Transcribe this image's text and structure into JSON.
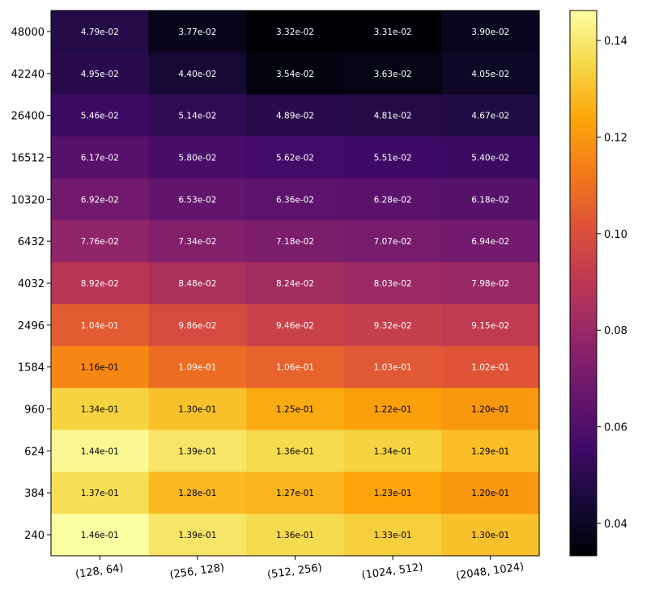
{
  "chart_data": {
    "type": "heatmap",
    "title": "",
    "xlabel": "",
    "ylabel": "",
    "colormap": "inferno",
    "x_categories": [
      "(128, 64)",
      "(256, 128)",
      "(512, 256)",
      "(1024, 512)",
      "(2048, 1024)"
    ],
    "y_categories": [
      "48000",
      "42240",
      "26400",
      "16512",
      "10320",
      "6432",
      "4032",
      "2496",
      "1584",
      "960",
      "624",
      "384",
      "240"
    ],
    "values": [
      [
        0.0479,
        0.0377,
        0.0332,
        0.0331,
        0.039
      ],
      [
        0.0495,
        0.044,
        0.0354,
        0.0363,
        0.0405
      ],
      [
        0.0546,
        0.0514,
        0.0489,
        0.0481,
        0.0467
      ],
      [
        0.0617,
        0.058,
        0.0562,
        0.0551,
        0.054
      ],
      [
        0.0692,
        0.0653,
        0.0636,
        0.0628,
        0.0618
      ],
      [
        0.0776,
        0.0734,
        0.0718,
        0.0707,
        0.0694
      ],
      [
        0.0892,
        0.0848,
        0.0824,
        0.0803,
        0.0798
      ],
      [
        0.104,
        0.0986,
        0.0946,
        0.0932,
        0.0915
      ],
      [
        0.116,
        0.109,
        0.106,
        0.103,
        0.102
      ],
      [
        0.134,
        0.13,
        0.125,
        0.122,
        0.12
      ],
      [
        0.144,
        0.139,
        0.136,
        0.134,
        0.129
      ],
      [
        0.137,
        0.128,
        0.127,
        0.123,
        0.12
      ],
      [
        0.146,
        0.139,
        0.136,
        0.133,
        0.13
      ]
    ],
    "cell_labels": [
      [
        "4.79e-02",
        "3.77e-02",
        "3.32e-02",
        "3.31e-02",
        "3.90e-02"
      ],
      [
        "4.95e-02",
        "4.40e-02",
        "3.54e-02",
        "3.63e-02",
        "4.05e-02"
      ],
      [
        "5.46e-02",
        "5.14e-02",
        "4.89e-02",
        "4.81e-02",
        "4.67e-02"
      ],
      [
        "6.17e-02",
        "5.80e-02",
        "5.62e-02",
        "5.51e-02",
        "5.40e-02"
      ],
      [
        "6.92e-02",
        "6.53e-02",
        "6.36e-02",
        "6.28e-02",
        "6.18e-02"
      ],
      [
        "7.76e-02",
        "7.34e-02",
        "7.18e-02",
        "7.07e-02",
        "6.94e-02"
      ],
      [
        "8.92e-02",
        "8.48e-02",
        "8.24e-02",
        "8.03e-02",
        "7.98e-02"
      ],
      [
        "1.04e-01",
        "9.86e-02",
        "9.46e-02",
        "9.32e-02",
        "9.15e-02"
      ],
      [
        "1.16e-01",
        "1.09e-01",
        "1.06e-01",
        "1.03e-01",
        "1.02e-01"
      ],
      [
        "1.34e-01",
        "1.30e-01",
        "1.25e-01",
        "1.22e-01",
        "1.20e-01"
      ],
      [
        "1.44e-01",
        "1.39e-01",
        "1.36e-01",
        "1.34e-01",
        "1.29e-01"
      ],
      [
        "1.37e-01",
        "1.28e-01",
        "1.27e-01",
        "1.23e-01",
        "1.20e-01"
      ],
      [
        "1.46e-01",
        "1.39e-01",
        "1.36e-01",
        "1.33e-01",
        "1.30e-01"
      ]
    ],
    "colorbar": {
      "range": [
        0.0333,
        0.1462
      ],
      "ticks": [
        0.04,
        0.06,
        0.08,
        0.1,
        0.12,
        0.14
      ],
      "tick_labels": [
        "0.04",
        "0.06",
        "0.08",
        "0.10",
        "0.12",
        "0.14"
      ]
    }
  }
}
